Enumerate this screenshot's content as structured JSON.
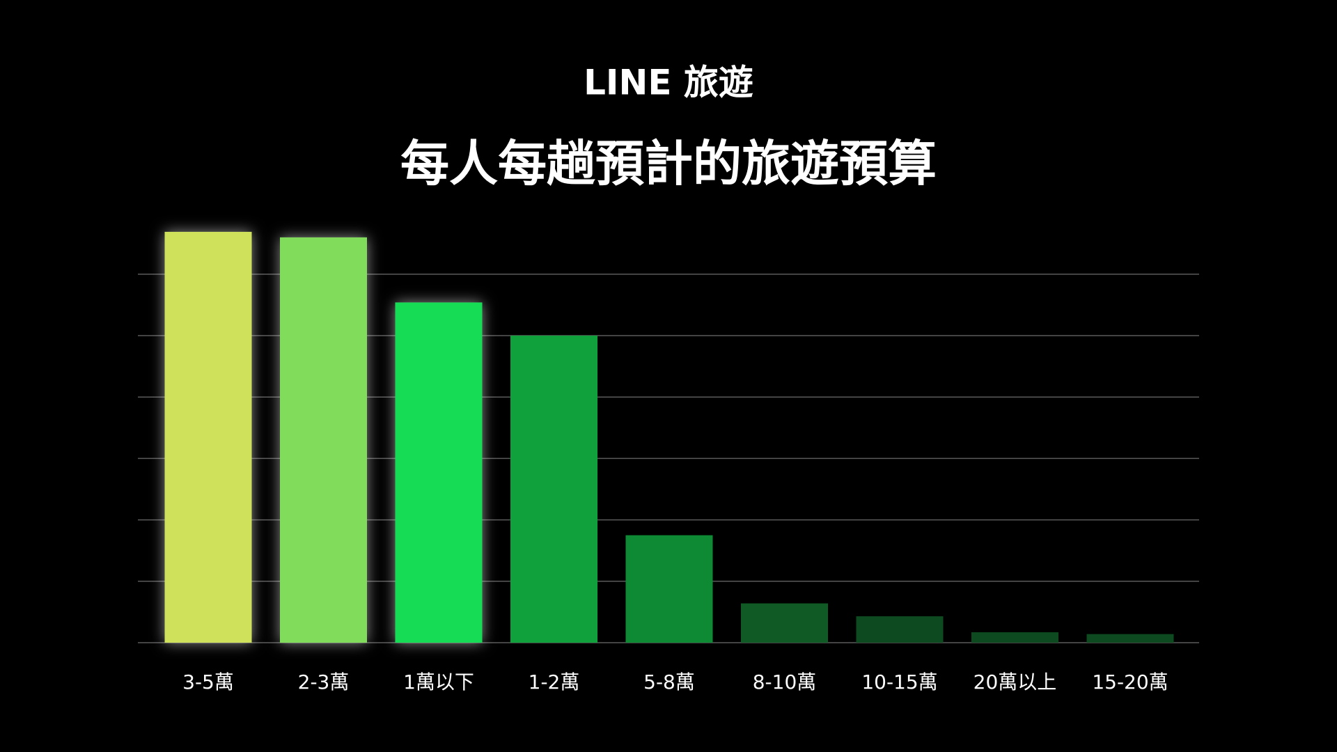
{
  "chart_data": {
    "type": "bar",
    "brand": "LINE 旅遊",
    "title": "每人每趟預計的旅遊預算",
    "categories": [
      "3-5萬",
      "2-3萬",
      "1萬以下",
      "1-2萬",
      "5-8萬",
      "8-10萬",
      "10-15萬",
      "20萬以上",
      "15-20萬"
    ],
    "values": [
      6.69,
      6.6,
      5.54,
      5.0,
      1.75,
      0.64,
      0.43,
      0.17,
      0.14
    ],
    "colors": [
      "#cfe05a",
      "#80dc5a",
      "#14dc55",
      "#10a03c",
      "#0e8a35",
      "#105a25",
      "#0e4a20",
      "#0d4a1f",
      "#0d4a1f"
    ],
    "ylim": [
      0,
      7
    ],
    "yticks": [
      0,
      1,
      2,
      3,
      4,
      5,
      6
    ],
    "grid": true
  }
}
